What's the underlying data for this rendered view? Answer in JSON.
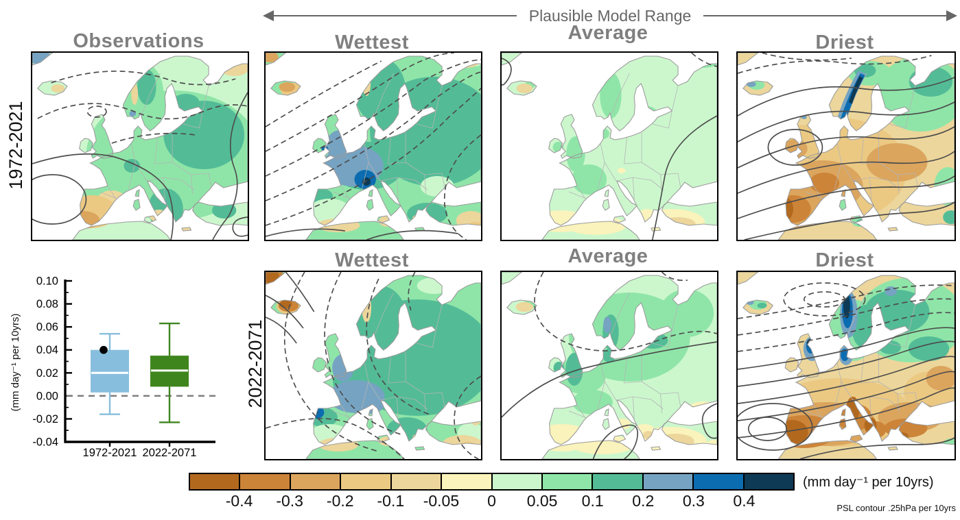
{
  "header": {
    "range_label": "Plausible Model Range"
  },
  "panel_titles": {
    "observations": "Observations",
    "wettest": "Wettest",
    "average": "Average",
    "driest": "Driest"
  },
  "row_labels": {
    "top": "1972-2021",
    "bottom": "2022-2071"
  },
  "chart_data": {
    "type": "box",
    "ylabel": "(mm day⁻¹ per 10yrs)",
    "categories": [
      "1972-2021",
      "2022-2071"
    ],
    "ylim": [
      -0.04,
      0.1
    ],
    "ytick_step": 0.02,
    "ytick_labels": [
      "-0.04",
      "-0.02",
      "0.00",
      "0.02",
      "0.04",
      "0.06",
      "0.08",
      "0.10"
    ],
    "zero_line": 0,
    "series": [
      {
        "name": "1972-2021",
        "color": "#88bedd",
        "whisker_low": -0.016,
        "q1": 0.003,
        "median": 0.02,
        "q3": 0.04,
        "whisker_high": 0.054,
        "obs_marker": 0.04,
        "marker_color": "#000000"
      },
      {
        "name": "2022-2071",
        "color": "#3f851e",
        "whisker_low": -0.023,
        "q1": 0.008,
        "median": 0.022,
        "q3": 0.035,
        "whisker_high": 0.063
      }
    ]
  },
  "colorbar": {
    "tick_labels": [
      "-0.4",
      "-0.3",
      "-0.2",
      "-0.1",
      "-0.05",
      "0",
      "0.05",
      "0.1",
      "0.2",
      "0.3",
      "0.4"
    ],
    "colors": [
      "#b2691e",
      "#cc8438",
      "#dba55e",
      "#ebc983",
      "#ecd69b",
      "#faf3bb",
      "#ccf7cd",
      "#8fe5a8",
      "#53bc97",
      "#76a3c2",
      "#0c6cb0",
      "#0e3a55"
    ],
    "unit_label": "(mm day⁻¹ per 10yrs)",
    "note": "PSL contour .25hPa per 10yrs"
  }
}
